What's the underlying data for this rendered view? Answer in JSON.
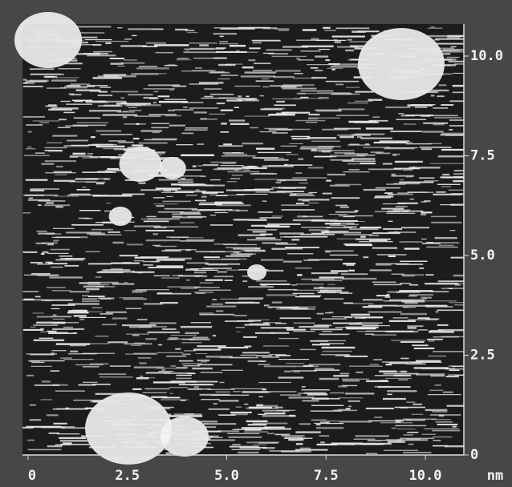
{
  "x_axis": {
    "ticks": [
      "0",
      "2.5",
      "5.0",
      "7.5",
      "10.0"
    ],
    "unit": "nm"
  },
  "y_axis": {
    "ticks": [
      "0",
      "2.5",
      "5.0",
      "7.5",
      "10.0"
    ]
  }
}
